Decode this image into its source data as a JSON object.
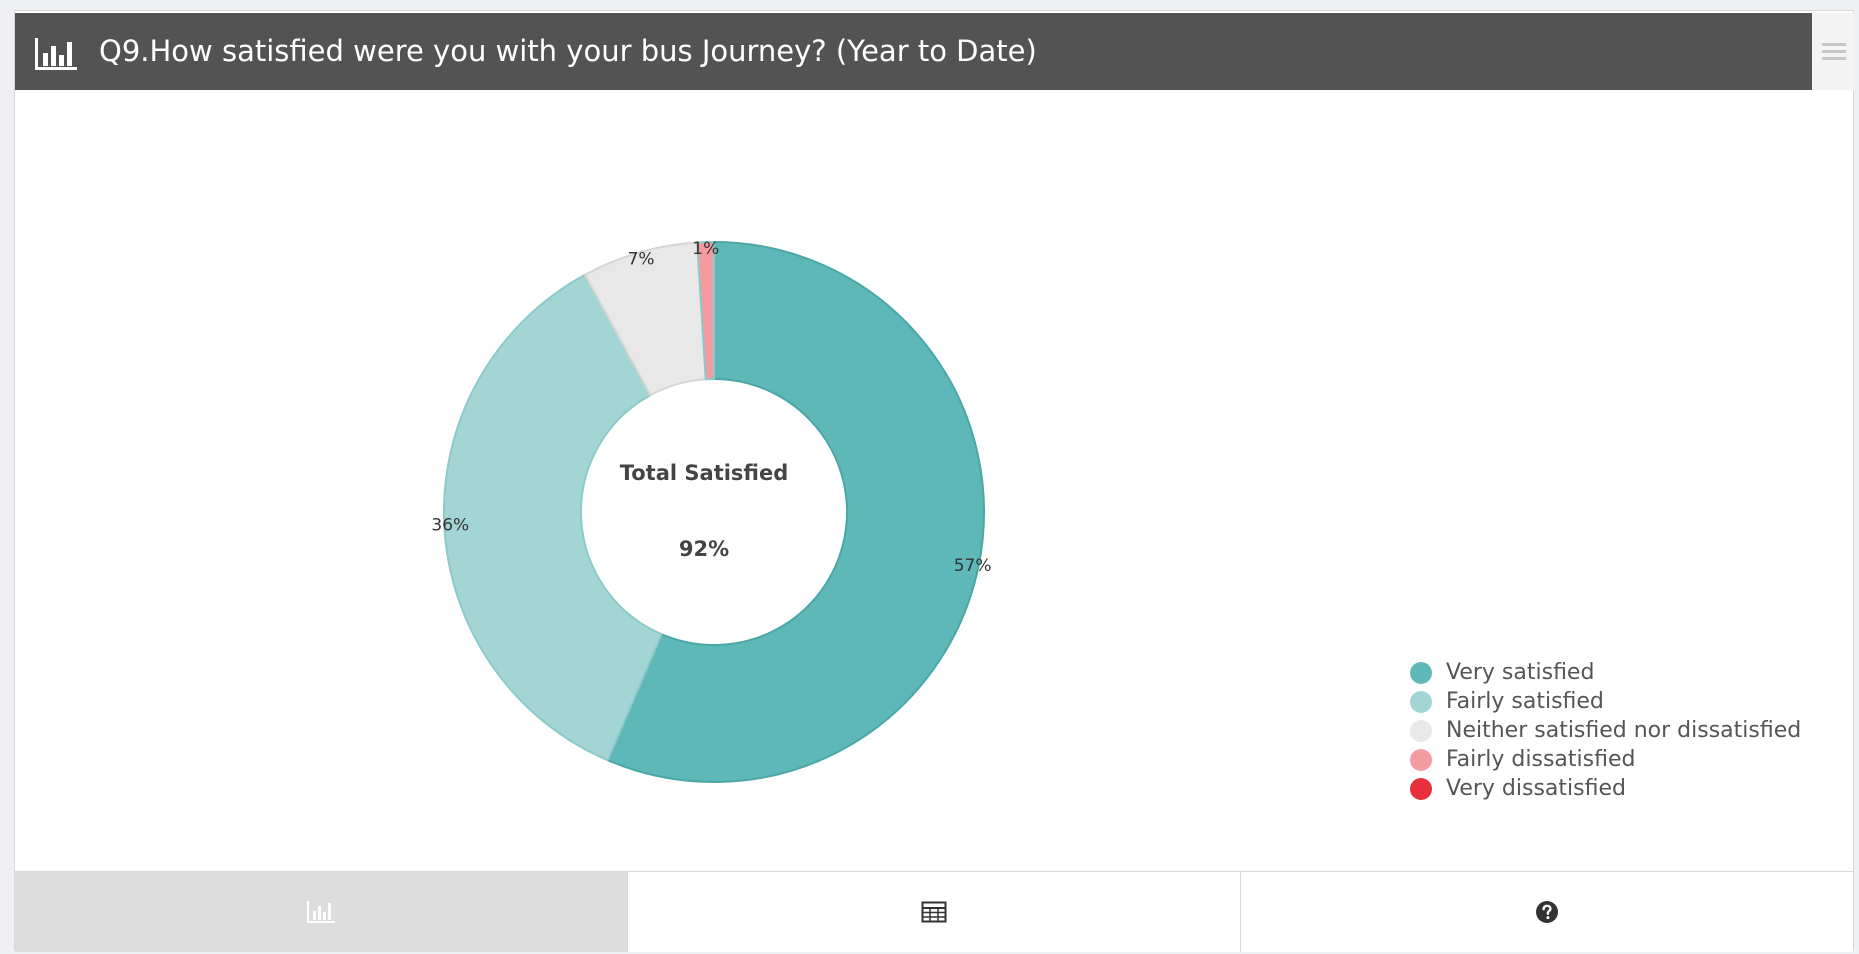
{
  "header": {
    "title": "Q9.How satisfied were you with your bus Journey? (Year to Date)",
    "icon": "bar-chart-icon",
    "menu_icon": "hamburger-menu-icon"
  },
  "chart_data": {
    "type": "pie",
    "title": "Q9.How satisfied were you with your bus Journey? (Year to Date)",
    "donut": true,
    "center_label": "Total Satisfied",
    "center_value": "92%",
    "legend_position": "bottom-right",
    "slices": [
      {
        "name": "Very satisfied",
        "value": 57,
        "label": "57%",
        "color": "#5fb8b8"
      },
      {
        "name": "Fairly satisfied",
        "value": 36,
        "label": "36%",
        "color": "#a3d5d5"
      },
      {
        "name": "Neither satisfied nor dissatisfied",
        "value": 7,
        "label": "7%",
        "color": "#e8e8e8"
      },
      {
        "name": "Fairly dissatisfied",
        "value": 1,
        "label": "1%",
        "color": "#f39ba1"
      },
      {
        "name": "Very dissatisfied",
        "value": 0,
        "label": "",
        "color": "#e8303c"
      }
    ]
  },
  "footer": {
    "tabs": [
      {
        "icon": "bar-chart-icon",
        "active": true
      },
      {
        "icon": "table-icon",
        "active": false
      },
      {
        "icon": "question-circle-icon",
        "active": false
      }
    ]
  }
}
